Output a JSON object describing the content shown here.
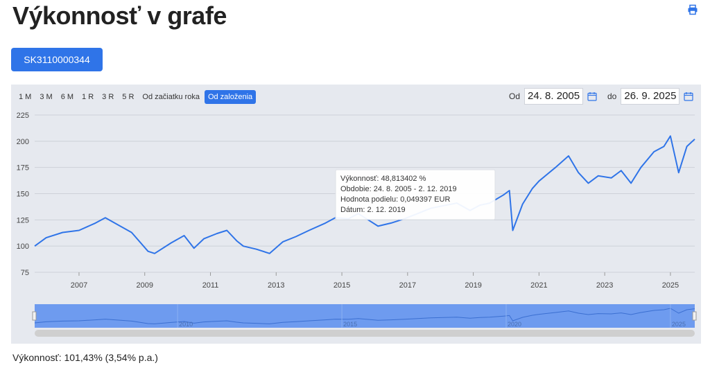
{
  "header": {
    "title": "Výkonnosť v grafe"
  },
  "isin_button": "SK3110000344",
  "range_buttons": [
    "1 M",
    "3 M",
    "6 M",
    "1 R",
    "3 R",
    "5 R",
    "Od začiatku roka",
    "Od založenia"
  ],
  "active_range": "Od založenia",
  "date_from_label": "Od",
  "date_from": "24. 8. 2005",
  "date_to_label": "do",
  "date_to": "26. 9. 2025",
  "tooltip": {
    "line1": "Výkonnosť: 48,813402 %",
    "line2": "Obdobie: 24. 8. 2005 - 2. 12. 2019",
    "line3": "Hodnota podielu: 0,049397 EUR",
    "line4": "Dátum: 2. 12. 2019"
  },
  "performance_text": "Výkonnosť: 101,43% (3,54% p.a.)",
  "navigator_labels": [
    "2010",
    "2015",
    "2020",
    "2025"
  ],
  "colors": {
    "line": "#2f74e8",
    "accent": "#2f74e8",
    "panel": "#e6e9ef"
  },
  "chart_data": {
    "type": "line",
    "x_ticks": [
      "2007",
      "2009",
      "2011",
      "2013",
      "2015",
      "2017",
      "2019",
      "2021",
      "2023",
      "2025"
    ],
    "y_ticks": [
      75,
      100,
      125,
      150,
      175,
      200,
      225
    ],
    "ylim": [
      75,
      225
    ],
    "xlim": [
      2005.65,
      2025.74
    ],
    "grid": true,
    "series": [
      {
        "x": [
          2005.65,
          2006.0,
          2006.5,
          2007.0,
          2007.5,
          2007.8,
          2008.2,
          2008.6,
          2009.1,
          2009.3,
          2009.8,
          2010.2,
          2010.5,
          2010.8,
          2011.2,
          2011.5,
          2011.8,
          2012.0,
          2012.4,
          2012.8,
          2013.2,
          2013.6,
          2014.0,
          2014.5,
          2014.8,
          2015.2,
          2015.5,
          2015.8,
          2016.1,
          2016.5,
          2016.9,
          2017.3,
          2017.7,
          2018.0,
          2018.5,
          2018.9,
          2019.2,
          2019.5,
          2019.92,
          2020.1,
          2020.2,
          2020.5,
          2020.8,
          2021.0,
          2021.5,
          2021.9,
          2022.2,
          2022.5,
          2022.8,
          2023.2,
          2023.5,
          2023.8,
          2024.1,
          2024.5,
          2024.8,
          2025.0,
          2025.25,
          2025.5,
          2025.74
        ],
        "y": [
          100,
          108,
          113,
          115,
          122,
          127,
          120,
          113,
          95,
          93,
          103,
          110,
          98,
          107,
          112,
          115,
          105,
          100,
          97,
          93,
          104,
          109,
          115,
          122,
          127,
          126,
          131,
          125,
          119,
          122,
          126,
          131,
          136,
          138,
          141,
          134,
          139,
          141,
          148.8,
          153,
          115,
          140,
          155,
          162,
          175,
          186,
          170,
          160,
          167,
          165,
          172,
          160,
          175,
          190,
          195,
          205,
          170,
          195,
          202
        ]
      }
    ]
  }
}
